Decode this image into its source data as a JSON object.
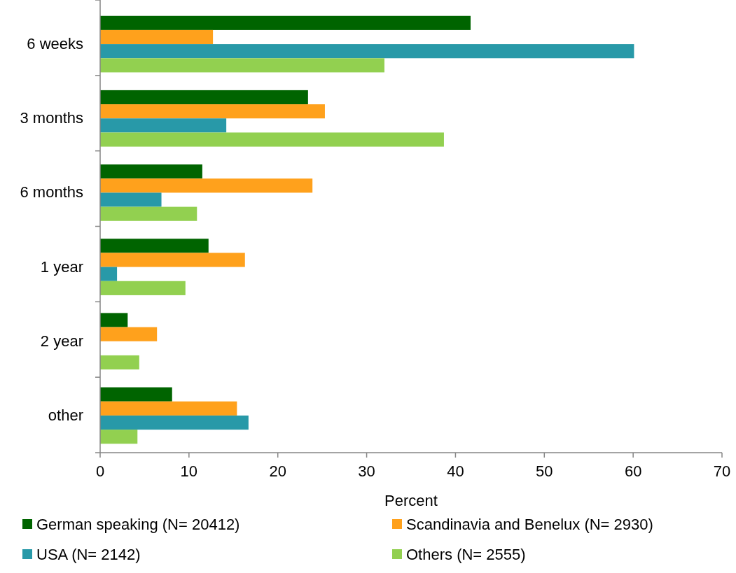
{
  "chart_data": {
    "type": "bar",
    "orientation": "horizontal",
    "xlabel": "Percent",
    "categories": [
      "6 weeks",
      "3 months",
      "6 months",
      "1 year",
      "2 year",
      "other"
    ],
    "series": [
      {
        "name": "German speaking (N= 20412)",
        "color": "#006400",
        "values": [
          41.7,
          23.4,
          11.5,
          12.2,
          3.1,
          8.1
        ]
      },
      {
        "name": "Scandinavia and Benelux (N= 2930)",
        "color": "#ffa11c",
        "values": [
          12.7,
          25.3,
          23.9,
          16.3,
          6.4,
          15.4
        ]
      },
      {
        "name": "USA (N= 2142)",
        "color": "#2899a8",
        "values": [
          60.1,
          14.2,
          6.9,
          1.9,
          null,
          16.7
        ]
      },
      {
        "name": "Others (N= 2555)",
        "color": "#92d050",
        "values": [
          32.0,
          38.7,
          10.9,
          9.6,
          4.4,
          4.2
        ]
      }
    ],
    "xlim": [
      0,
      70
    ],
    "xticks": [
      0,
      10,
      20,
      30,
      40,
      50,
      60,
      70
    ],
    "grid": false,
    "legend": "bottom"
  }
}
